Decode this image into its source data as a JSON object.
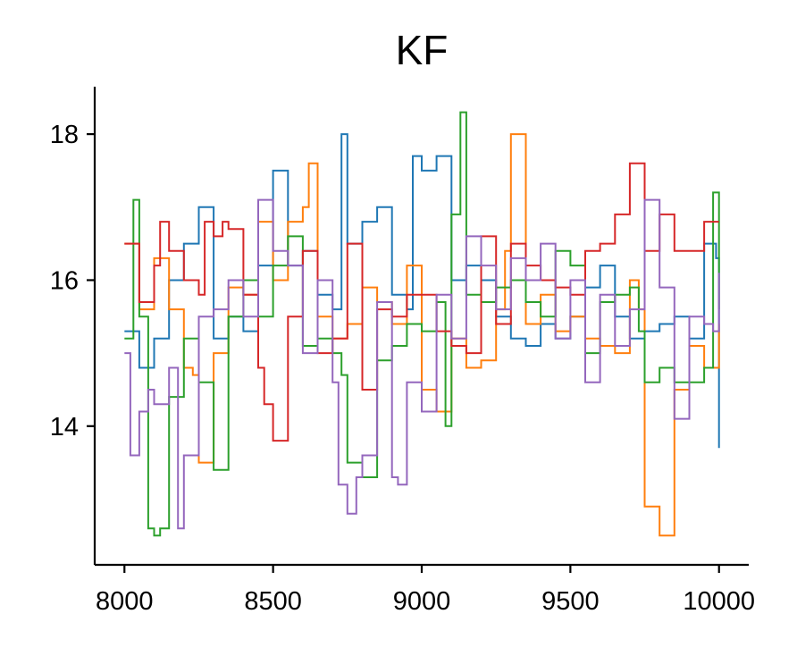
{
  "chart_data": {
    "type": "line",
    "title": "KF",
    "xlabel": "",
    "ylabel": "",
    "xlim": [
      7900,
      10100
    ],
    "ylim": [
      12.1,
      18.65
    ],
    "xticks": [
      8000,
      8500,
      9000,
      9500,
      10000
    ],
    "yticks": [
      14,
      16,
      18
    ],
    "grid": false,
    "legend": "none",
    "series": [
      {
        "color": "#1f77b4",
        "x": [
          8000,
          8050,
          8100,
          8150,
          8200,
          8250,
          8300,
          8350,
          8400,
          8450,
          8500,
          8550,
          8600,
          8650,
          8700,
          8730,
          8750,
          8800,
          8850,
          8900,
          8950,
          8970,
          9000,
          9050,
          9100,
          9150,
          9200,
          9250,
          9300,
          9350,
          9400,
          9450,
          9500,
          9550,
          9600,
          9650,
          9700,
          9750,
          9800,
          9850,
          9900,
          9950,
          9990,
          10000
        ],
        "y": [
          15.3,
          14.8,
          15.2,
          16.0,
          16.5,
          17.0,
          15.2,
          15.5,
          15.3,
          16.2,
          17.5,
          16.2,
          16.4,
          15.8,
          15.6,
          18.0,
          16.5,
          16.8,
          17.0,
          15.8,
          15.6,
          17.7,
          17.5,
          17.7,
          16.0,
          16.2,
          16.0,
          15.5,
          15.2,
          15.1,
          15.4,
          15.2,
          15.5,
          15.9,
          16.2,
          15.5,
          15.2,
          15.3,
          15.4,
          15.5,
          15.2,
          16.5,
          16.3,
          13.7
        ]
      },
      {
        "color": "#ff7f0e",
        "x": [
          8000,
          8050,
          8100,
          8150,
          8200,
          8230,
          8250,
          8300,
          8350,
          8400,
          8450,
          8500,
          8550,
          8600,
          8620,
          8650,
          8700,
          8750,
          8800,
          8850,
          8900,
          8950,
          9000,
          9050,
          9100,
          9150,
          9200,
          9250,
          9280,
          9300,
          9350,
          9400,
          9450,
          9500,
          9550,
          9600,
          9650,
          9700,
          9730,
          9750,
          9800,
          9850,
          9900,
          9950,
          10000
        ],
        "y": [
          16.5,
          15.6,
          16.3,
          15.6,
          14.8,
          14.7,
          13.5,
          15.0,
          15.9,
          15.8,
          16.8,
          16.0,
          16.8,
          17.0,
          17.6,
          15.5,
          15.2,
          15.4,
          15.9,
          15.7,
          15.4,
          16.2,
          14.5,
          14.2,
          15.2,
          14.8,
          14.9,
          15.6,
          16.4,
          18.0,
          15.4,
          15.8,
          15.3,
          15.5,
          15.2,
          15.1,
          15.0,
          16.0,
          15.6,
          12.9,
          12.5,
          14.5,
          15.1,
          14.8,
          15.4
        ]
      },
      {
        "color": "#2ca02c",
        "x": [
          8000,
          8030,
          8050,
          8080,
          8100,
          8120,
          8150,
          8200,
          8250,
          8300,
          8350,
          8400,
          8450,
          8500,
          8550,
          8600,
          8650,
          8700,
          8730,
          8750,
          8800,
          8850,
          8900,
          8950,
          9000,
          9050,
          9080,
          9100,
          9130,
          9150,
          9200,
          9250,
          9300,
          9350,
          9400,
          9450,
          9500,
          9550,
          9600,
          9650,
          9700,
          9730,
          9750,
          9800,
          9850,
          9900,
          9950,
          9980,
          10000
        ],
        "y": [
          15.2,
          17.1,
          15.5,
          12.6,
          12.5,
          12.6,
          14.4,
          15.2,
          14.6,
          13.4,
          15.5,
          16.0,
          15.5,
          16.2,
          16.6,
          15.1,
          15.2,
          15.0,
          14.7,
          13.5,
          13.3,
          14.9,
          15.1,
          15.4,
          15.3,
          15.7,
          14.0,
          16.9,
          18.3,
          15.8,
          15.7,
          15.9,
          16.0,
          15.7,
          15.5,
          16.4,
          16.2,
          15.0,
          15.7,
          15.8,
          15.9,
          15.3,
          14.6,
          14.8,
          14.6,
          14.6,
          14.8,
          17.2,
          15.6
        ]
      },
      {
        "color": "#d62728",
        "x": [
          8000,
          8050,
          8100,
          8120,
          8150,
          8200,
          8250,
          8270,
          8300,
          8330,
          8350,
          8400,
          8450,
          8470,
          8500,
          8550,
          8600,
          8650,
          8700,
          8750,
          8800,
          8850,
          8900,
          8950,
          9000,
          9050,
          9100,
          9150,
          9200,
          9250,
          9300,
          9350,
          9400,
          9450,
          9500,
          9550,
          9600,
          9650,
          9700,
          9750,
          9800,
          9850,
          9900,
          9950,
          10000
        ],
        "y": [
          16.5,
          15.7,
          16.2,
          16.8,
          16.4,
          16.0,
          15.8,
          16.8,
          16.6,
          16.8,
          16.7,
          15.8,
          14.8,
          14.3,
          13.8,
          15.5,
          16.4,
          15.0,
          15.2,
          16.5,
          14.5,
          15.6,
          15.5,
          15.8,
          15.8,
          15.3,
          15.1,
          15.0,
          16.6,
          15.4,
          16.5,
          16.2,
          16.0,
          15.9,
          15.8,
          16.4,
          16.5,
          16.9,
          17.6,
          16.4,
          16.9,
          16.4,
          16.4,
          16.8,
          16.8
        ]
      },
      {
        "color": "#9467bd",
        "x": [
          8000,
          8020,
          8050,
          8080,
          8100,
          8150,
          8180,
          8200,
          8230,
          8250,
          8300,
          8350,
          8400,
          8450,
          8500,
          8550,
          8600,
          8650,
          8700,
          8720,
          8750,
          8780,
          8800,
          8850,
          8900,
          8920,
          8950,
          9000,
          9050,
          9100,
          9150,
          9200,
          9250,
          9300,
          9350,
          9400,
          9450,
          9500,
          9550,
          9600,
          9650,
          9700,
          9750,
          9800,
          9850,
          9900,
          9950,
          9980,
          10000
        ],
        "y": [
          15.0,
          13.6,
          14.2,
          14.5,
          14.3,
          14.8,
          12.6,
          13.6,
          13.6,
          15.5,
          15.6,
          16.0,
          15.5,
          17.1,
          16.4,
          16.2,
          15.0,
          16.0,
          14.6,
          13.2,
          12.8,
          13.3,
          13.6,
          15.7,
          13.3,
          13.2,
          14.6,
          14.2,
          15.8,
          15.2,
          16.6,
          16.2,
          15.6,
          16.3,
          16.0,
          16.5,
          15.2,
          16.0,
          14.6,
          15.8,
          15.1,
          15.6,
          17.1,
          15.9,
          14.1,
          15.5,
          15.4,
          15.3,
          16.1
        ]
      }
    ]
  }
}
